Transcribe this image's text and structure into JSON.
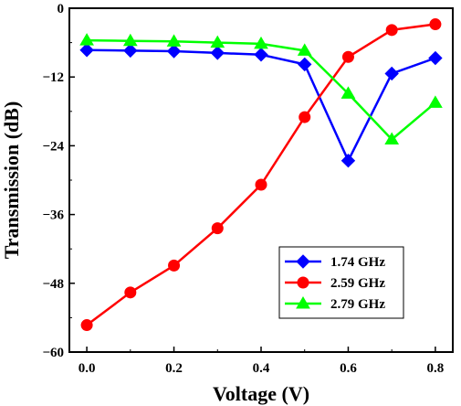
{
  "chart_data": {
    "type": "line",
    "title": "",
    "xlabel": "Voltage (V)",
    "ylabel": "Transmission (dB)",
    "xlim": [
      -0.04,
      0.84
    ],
    "ylim": [
      -60,
      0
    ],
    "xticks": [
      0.0,
      0.2,
      0.4,
      0.6,
      0.8
    ],
    "xtick_labels": [
      "0.0",
      "0.2",
      "0.4",
      "0.6",
      "0.8"
    ],
    "yticks": [
      0,
      -12,
      -24,
      -36,
      -48,
      -60
    ],
    "ytick_labels": [
      "0",
      "−12",
      "−24",
      "−36",
      "−48",
      "−60"
    ],
    "grid": false,
    "legend_position": "bottom-right",
    "x": [
      0.0,
      0.1,
      0.2,
      0.3,
      0.4,
      0.5,
      0.6,
      0.7,
      0.8
    ],
    "series": [
      {
        "name": "1.74 GHz",
        "color": "#0000ff",
        "marker": "diamond",
        "values": [
          -7.3,
          -7.4,
          -7.5,
          -7.8,
          -8.1,
          -9.8,
          -26.6,
          -11.4,
          -8.7
        ]
      },
      {
        "name": "2.59 GHz",
        "color": "#ff0000",
        "marker": "circle",
        "values": [
          -55.3,
          -49.6,
          -44.9,
          -38.4,
          -30.8,
          -19.0,
          -8.5,
          -3.8,
          -2.8
        ]
      },
      {
        "name": "2.79 GHz",
        "color": "#00ff00",
        "marker": "triangle",
        "values": [
          -5.6,
          -5.7,
          -5.8,
          -6.0,
          -6.2,
          -7.4,
          -14.9,
          -22.9,
          -16.5
        ]
      }
    ]
  }
}
